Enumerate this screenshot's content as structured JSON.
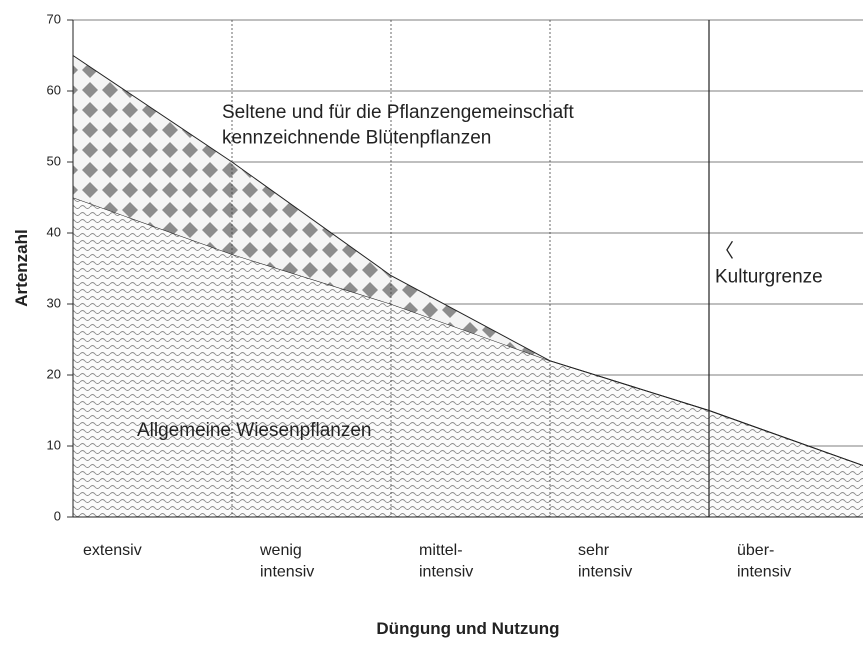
{
  "chart_data": {
    "type": "stacked_area",
    "xlabel": "Düngung und Nutzung",
    "ylabel": "Artenzahl",
    "categories": [
      "extensiv",
      "wenig\nintensiv",
      "mittel-\nintensiv",
      "sehr\nintensiv",
      "über-\nintensiv"
    ],
    "x": [
      0,
      1,
      2,
      3,
      4,
      5
    ],
    "xlim": [
      0,
      5
    ],
    "series": [
      {
        "name": "Allgemeine Wiesenpflanzen",
        "color": "#8a8a8a",
        "pattern": "wave",
        "values": [
          45,
          37,
          30,
          22,
          15,
          7
        ]
      },
      {
        "name": "Seltene und für die Pflanzengemeinschaft\nkennzeichnende Blütenpflanzen",
        "color": "#8c8c8c",
        "pattern": "diamond",
        "values": [
          20,
          13,
          4,
          0,
          0,
          0
        ]
      }
    ],
    "annotation": {
      "text": "〈\nKulturgrenze",
      "x": 4
    },
    "ylim": [
      0,
      70
    ],
    "yticks": [
      0,
      10,
      20,
      30,
      40,
      50,
      60,
      70
    ],
    "grid": true
  }
}
